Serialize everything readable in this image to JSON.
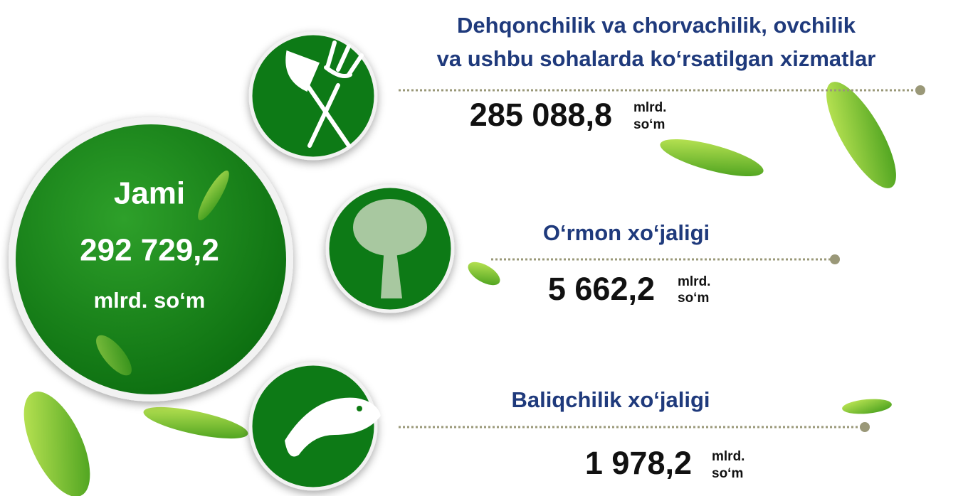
{
  "total": {
    "label": "Jami",
    "value": "292 729,2",
    "unit": "mlrd. so‘m"
  },
  "items": [
    {
      "title_lines": [
        "Dehqonchilik va chorvachilik, ovchilik",
        "va ushbu sohalarda ko‘rsatilgan xizmatlar"
      ],
      "value": "285 088,8",
      "unit_lines": [
        "mlrd.",
        "so‘m"
      ]
    },
    {
      "title_lines": [
        "O‘rmon xo‘jaligi"
      ],
      "value": "5 662,2",
      "unit_lines": [
        "mlrd.",
        "so‘m"
      ]
    },
    {
      "title_lines": [
        "Baliqchilik xo‘jaligi"
      ],
      "value": "1 978,2",
      "unit_lines": [
        "mlrd.",
        "so‘m"
      ]
    }
  ]
}
